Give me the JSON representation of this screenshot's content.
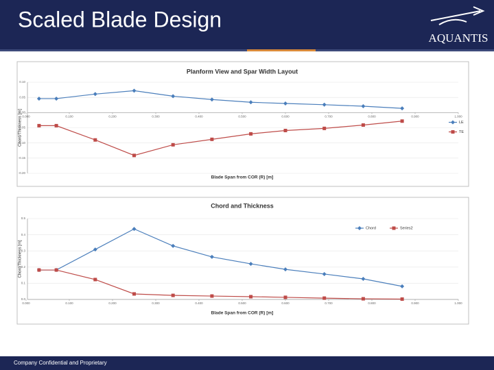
{
  "header": {
    "title": "Scaled Blade Design",
    "logo": "AQUANTIS"
  },
  "footer": {
    "text": "Company Confidential and Proprietary"
  },
  "chart_data": [
    {
      "type": "line",
      "title": "Planform View and Spar Width Layout",
      "x_label": "Blade Span from COR (R) [m]",
      "y_label": "Chord/Thickness [m]",
      "x": [
        0.03,
        0.07,
        0.16,
        0.25,
        0.34,
        0.43,
        0.52,
        0.6,
        0.69,
        0.78,
        0.87
      ],
      "series": [
        {
          "name": "LE",
          "color": "#4a7ebb",
          "marker": "diamond",
          "values": [
            0.046,
            0.046,
            0.061,
            0.072,
            0.054,
            0.043,
            0.034,
            0.03,
            0.026,
            0.021,
            0.014
          ]
        },
        {
          "name": "TE",
          "color": "#be4b48",
          "marker": "square",
          "values": [
            -0.043,
            -0.043,
            -0.09,
            -0.141,
            -0.106,
            -0.088,
            -0.07,
            -0.059,
            -0.052,
            -0.041,
            -0.028
          ]
        }
      ],
      "xlim": [
        0,
        1
      ],
      "xticks": [
        {
          "value": 0,
          "label": "0.000"
        },
        {
          "value": 0.1,
          "label": "0.100"
        },
        {
          "value": 0.2,
          "label": "0.200"
        },
        {
          "value": 0.3,
          "label": "0.300"
        },
        {
          "value": 0.4,
          "label": "0.400"
        },
        {
          "value": 0.5,
          "label": "0.500"
        },
        {
          "value": 0.6,
          "label": "0.600"
        },
        {
          "value": 0.7,
          "label": "0.700"
        },
        {
          "value": 0.8,
          "label": "0.800"
        },
        {
          "value": 0.9,
          "label": "0.900"
        },
        {
          "value": 1,
          "label": "1.000"
        }
      ],
      "ylim": [
        -0.2,
        0.1
      ],
      "yticks": [
        {
          "value": 0.1,
          "label": "0.10"
        },
        {
          "value": 0.05,
          "label": "0.05"
        },
        {
          "value": 0,
          "label": "0.00"
        },
        {
          "value": -0.05,
          "label": "-0.05"
        },
        {
          "value": -0.1,
          "label": "-0.10"
        },
        {
          "value": -0.15,
          "label": "-0.15"
        },
        {
          "value": -0.2,
          "label": "-0.20"
        }
      ],
      "grid": true,
      "legend": "right"
    },
    {
      "type": "line",
      "title": "Chord and Thickness",
      "x_label": "Blade Span from COR (R) [m]",
      "y_label": "Chord/Thickness [m]",
      "x": [
        0.03,
        0.07,
        0.16,
        0.25,
        0.34,
        0.43,
        0.52,
        0.6,
        0.69,
        0.78,
        0.87
      ],
      "series": [
        {
          "name": "Chord",
          "color": "#4a7ebb",
          "marker": "diamond",
          "values": [
            0.182,
            0.182,
            0.309,
            0.436,
            0.331,
            0.263,
            0.22,
            0.186,
            0.157,
            0.127,
            0.081
          ]
        },
        {
          "name": "Series2",
          "color": "#be4b48",
          "marker": "square",
          "values": [
            0.182,
            0.182,
            0.123,
            0.034,
            0.025,
            0.021,
            0.017,
            0.013,
            0.008,
            0.004,
            0.002
          ]
        }
      ],
      "xlim": [
        0,
        1
      ],
      "xticks": [
        {
          "value": 0,
          "label": "0.000"
        },
        {
          "value": 0.1,
          "label": "0.100"
        },
        {
          "value": 0.2,
          "label": "0.200"
        },
        {
          "value": 0.3,
          "label": "0.300"
        },
        {
          "value": 0.4,
          "label": "0.400"
        },
        {
          "value": 0.5,
          "label": "0.500"
        },
        {
          "value": 0.6,
          "label": "0.600"
        },
        {
          "value": 0.7,
          "label": "0.700"
        },
        {
          "value": 0.8,
          "label": "0.800"
        },
        {
          "value": 0.9,
          "label": "0.900"
        },
        {
          "value": 1,
          "label": "1.000"
        }
      ],
      "ylim": [
        0,
        0.5
      ],
      "yticks": [
        0.5,
        0.4,
        0.3,
        0.2,
        0.1,
        {
          "value": 0,
          "label": "0.0"
        }
      ],
      "grid": true,
      "legend": "top-right"
    }
  ]
}
